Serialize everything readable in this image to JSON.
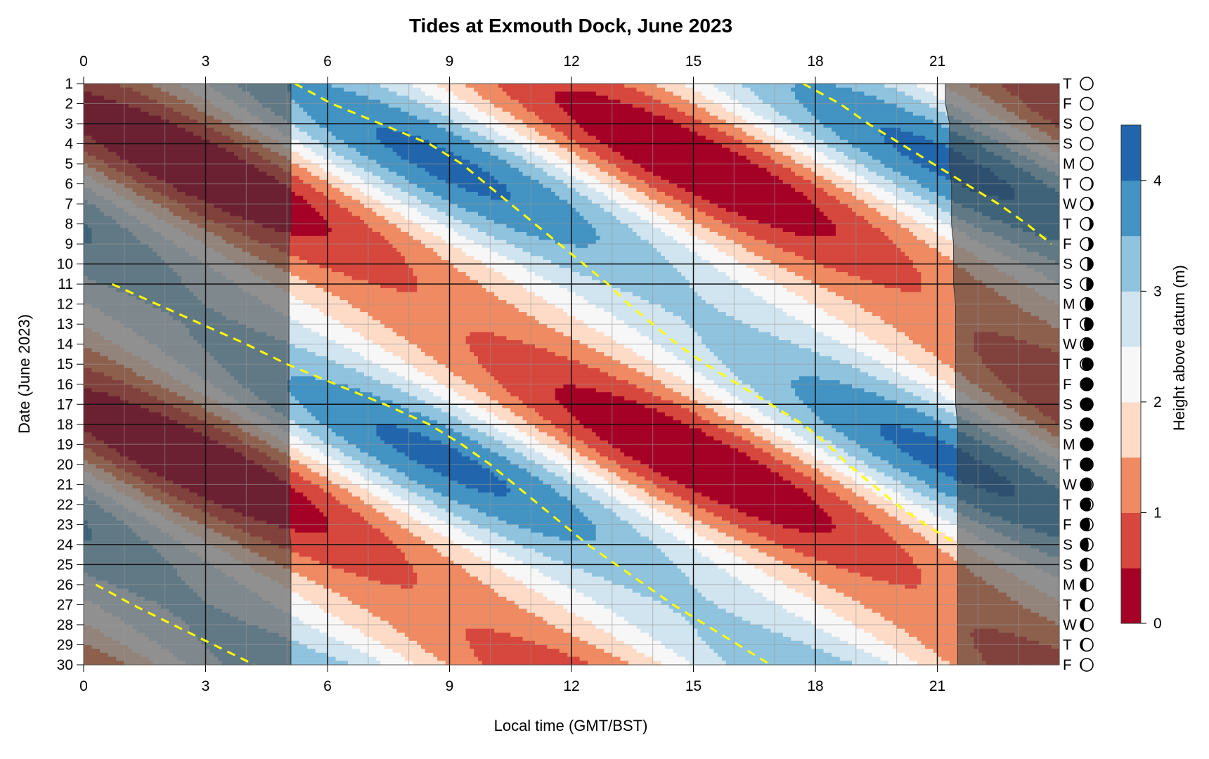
{
  "chart_data": {
    "type": "heatmap",
    "title": "Tides at Exmouth Dock, June 2023",
    "xlabel": "Local time (GMT/BST)",
    "ylabel": "Date (June 2023)",
    "colorbar_label": "Height above datum (m)",
    "xlim": [
      0,
      24
    ],
    "ylim": [
      1,
      30
    ],
    "x_ticks": [
      "0",
      "3",
      "6",
      "9",
      "12",
      "15",
      "18",
      "21"
    ],
    "y_ticks": [
      "1",
      "2",
      "3",
      "4",
      "5",
      "6",
      "7",
      "8",
      "9",
      "10",
      "11",
      "12",
      "13",
      "14",
      "15",
      "16",
      "17",
      "18",
      "19",
      "20",
      "21",
      "22",
      "23",
      "24",
      "25",
      "26",
      "27",
      "28",
      "29",
      "30"
    ],
    "colorbar_ticks": [
      "0",
      "1",
      "2",
      "3",
      "4"
    ],
    "colorbar_range": [
      0,
      4.5
    ],
    "level_colors": [
      "#a50026",
      "#d6473d",
      "#ef8a62",
      "#fddbc7",
      "#f7f7f7",
      "#d1e5f0",
      "#8fc3de",
      "#4393c3",
      "#2166ac"
    ],
    "weekday_letters": [
      "T",
      "F",
      "S",
      "S",
      "M",
      "T",
      "W",
      "T",
      "F",
      "S",
      "S",
      "M",
      "T",
      "W",
      "T",
      "F",
      "S",
      "S",
      "M",
      "T",
      "W",
      "T",
      "F",
      "S",
      "S",
      "M",
      "T",
      "W",
      "T",
      "F"
    ],
    "moon_phase_fraction": [
      0.45,
      0.48,
      0.51,
      0.55,
      0.58,
      0.61,
      0.64,
      0.67,
      0.7,
      0.73,
      0.76,
      0.79,
      0.82,
      0.86,
      0.89,
      0.93,
      0.97,
      0.0,
      0.03,
      0.07,
      0.1,
      0.13,
      0.16,
      0.2,
      0.23,
      0.26,
      0.3,
      0.33,
      0.36,
      0.4
    ],
    "weekend_days": [
      3,
      4,
      10,
      11,
      17,
      18,
      24,
      25
    ],
    "night_shading": {
      "dark_before_hours": [
        5.1,
        5.1,
        5.1,
        5.1,
        5.1,
        5.1,
        5.1,
        5.1,
        5.05,
        5.05,
        5.05,
        5.05,
        5.05,
        5.05,
        5.05,
        5.05,
        5.05,
        5.05,
        5.05,
        5.05,
        5.05,
        5.05,
        5.05,
        5.1,
        5.1,
        5.1,
        5.1,
        5.1,
        5.1,
        5.1
      ],
      "dark_after_hours": [
        21.2,
        21.2,
        21.3,
        21.3,
        21.3,
        21.35,
        21.35,
        21.35,
        21.4,
        21.4,
        21.4,
        21.45,
        21.45,
        21.45,
        21.45,
        21.45,
        21.45,
        21.5,
        21.5,
        21.5,
        21.5,
        21.5,
        21.5,
        21.5,
        21.5,
        21.5,
        21.5,
        21.5,
        21.5,
        21.5
      ]
    },
    "tide_model": {
      "mean_level_m": 2.05,
      "amplitude_mean_m": 1.55,
      "amplitude_spring_neap_m": 0.55,
      "spring_day": 5.0,
      "spring_neap_period_days": 14.76,
      "high_water_phase_hours": 17.9,
      "semidiurnal_period_hours": 12.42,
      "lunar_day_hours": 24.84
    },
    "high_water_series": [
      {
        "points": [
          [
            5.2,
            1
          ],
          [
            6.1,
            2
          ],
          [
            7.3,
            3
          ],
          [
            8.5,
            4
          ],
          [
            9.3,
            5
          ],
          [
            9.9,
            6
          ],
          [
            10.5,
            7
          ],
          [
            11.1,
            8
          ],
          [
            11.7,
            9
          ],
          [
            12.3,
            10
          ],
          [
            12.9,
            11
          ],
          [
            13.4,
            12
          ],
          [
            14.0,
            13
          ],
          [
            14.6,
            14
          ],
          [
            15.3,
            15
          ],
          [
            16.1,
            16
          ],
          [
            16.9,
            17
          ],
          [
            17.7,
            18
          ],
          [
            18.3,
            19
          ],
          [
            18.8,
            20
          ],
          [
            19.4,
            21
          ],
          [
            20.0,
            22
          ],
          [
            20.7,
            23
          ],
          [
            21.5,
            24
          ]
        ]
      },
      {
        "points": [
          [
            17.7,
            1
          ],
          [
            18.6,
            2
          ],
          [
            19.3,
            3
          ],
          [
            20.1,
            4
          ],
          [
            20.9,
            5
          ],
          [
            21.7,
            6
          ],
          [
            22.5,
            7
          ],
          [
            23.2,
            8
          ],
          [
            23.8,
            9
          ]
        ]
      },
      {
        "points": [
          [
            0.7,
            11
          ],
          [
            1.8,
            12
          ],
          [
            2.9,
            13
          ],
          [
            4.0,
            14
          ],
          [
            5.0,
            15
          ],
          [
            6.2,
            16
          ],
          [
            7.4,
            17
          ],
          [
            8.5,
            18
          ],
          [
            9.3,
            19
          ],
          [
            10.0,
            20
          ],
          [
            10.6,
            21
          ],
          [
            11.2,
            22
          ],
          [
            11.8,
            23
          ],
          [
            12.4,
            24
          ],
          [
            13.1,
            25
          ],
          [
            13.8,
            26
          ],
          [
            14.5,
            27
          ],
          [
            15.3,
            28
          ],
          [
            16.1,
            29
          ],
          [
            16.9,
            30
          ]
        ]
      },
      {
        "points": [
          [
            0.3,
            26
          ],
          [
            1.2,
            27
          ],
          [
            2.2,
            28
          ],
          [
            3.2,
            29
          ],
          [
            4.2,
            30
          ]
        ]
      }
    ]
  }
}
